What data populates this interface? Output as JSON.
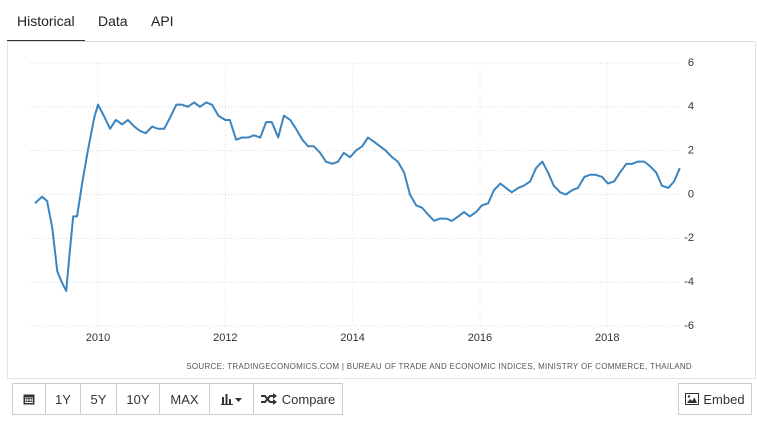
{
  "tabs": [
    "Historical",
    "Data",
    "API"
  ],
  "chart_data": {
    "type": "line",
    "source": "SOURCE: TRADINGECONOMICS.COM | BUREAU OF TRADE AND ECONOMIC INDICES, MINISTRY OF COMMERCE, THAILAND",
    "x": [
      2009.01,
      2009.12,
      2009.2,
      2009.28,
      2009.36,
      2009.43,
      2009.5,
      2009.56,
      2009.61,
      2009.67,
      2009.75,
      2009.84,
      2009.94,
      2010.0,
      2010.09,
      2010.19,
      2010.28,
      2010.38,
      2010.47,
      2010.57,
      2010.66,
      2010.75,
      2010.85,
      2010.94,
      2011.04,
      2011.13,
      2011.23,
      2011.32,
      2011.41,
      2011.51,
      2011.6,
      2011.7,
      2011.79,
      2011.89,
      2012.0,
      2012.07,
      2012.17,
      2012.26,
      2012.36,
      2012.45,
      2012.55,
      2012.64,
      2012.73,
      2012.83,
      2012.92,
      2013.02,
      2013.11,
      2013.21,
      2013.3,
      2013.39,
      2013.49,
      2013.58,
      2013.68,
      2013.77,
      2013.86,
      2013.96,
      2014.05,
      2014.15,
      2014.24,
      2014.34,
      2014.43,
      2014.52,
      2014.62,
      2014.71,
      2014.81,
      2014.9,
      2015.0,
      2015.09,
      2015.18,
      2015.28,
      2015.37,
      2015.47,
      2015.56,
      2015.66,
      2015.75,
      2015.84,
      2015.94,
      2016.03,
      2016.13,
      2016.22,
      2016.32,
      2016.41,
      2016.5,
      2016.6,
      2016.69,
      2016.79,
      2016.88,
      2016.98,
      2017.07,
      2017.16,
      2017.26,
      2017.35,
      2017.45,
      2017.54,
      2017.64,
      2017.73,
      2017.82,
      2017.92,
      2018.01,
      2018.11,
      2018.2,
      2018.3,
      2018.39,
      2018.48,
      2018.58,
      2018.67,
      2018.77,
      2018.86,
      2018.96,
      2019.05,
      2019.14
    ],
    "series": [
      {
        "color": "#3a84c0",
        "values": [
          -0.4,
          -0.1,
          -0.3,
          -1.5,
          -3.5,
          -4.0,
          -4.4,
          -2.5,
          -1.0,
          -1.0,
          0.5,
          2.0,
          3.5,
          4.1,
          3.6,
          3.0,
          3.4,
          3.2,
          3.4,
          3.1,
          2.9,
          2.8,
          3.1,
          3.0,
          3.0,
          3.5,
          4.1,
          4.1,
          4.0,
          4.2,
          4.0,
          4.2,
          4.1,
          3.6,
          3.4,
          3.4,
          2.5,
          2.6,
          2.6,
          2.7,
          2.6,
          3.3,
          3.3,
          2.6,
          3.6,
          3.4,
          3.0,
          2.5,
          2.2,
          2.2,
          1.9,
          1.5,
          1.4,
          1.5,
          1.9,
          1.7,
          2.0,
          2.2,
          2.6,
          2.4,
          2.2,
          2.0,
          1.7,
          1.5,
          1.0,
          0.0,
          -0.5,
          -0.6,
          -0.9,
          -1.2,
          -1.1,
          -1.1,
          -1.2,
          -1.0,
          -0.8,
          -1.0,
          -0.8,
          -0.5,
          -0.4,
          0.2,
          0.5,
          0.3,
          0.1,
          0.3,
          0.4,
          0.6,
          1.2,
          1.5,
          1.0,
          0.4,
          0.1,
          0.0,
          0.2,
          0.3,
          0.8,
          0.9,
          0.9,
          0.8,
          0.5,
          0.6,
          1.0,
          1.4,
          1.4,
          1.5,
          1.5,
          1.3,
          1.0,
          0.4,
          0.3,
          0.6,
          1.2
        ]
      }
    ],
    "xlim": [
      2008.9,
      2019.3
    ],
    "xticks": [
      2010,
      2012,
      2014,
      2016,
      2018
    ],
    "ylim": [
      -6,
      6
    ],
    "yticks": [
      -6,
      -4,
      -2,
      0,
      2,
      4,
      6
    ],
    "grid": true
  },
  "buttons": [
    "1Y",
    "5Y",
    "10Y",
    "MAX",
    "Compare"
  ],
  "embed": "Embed"
}
